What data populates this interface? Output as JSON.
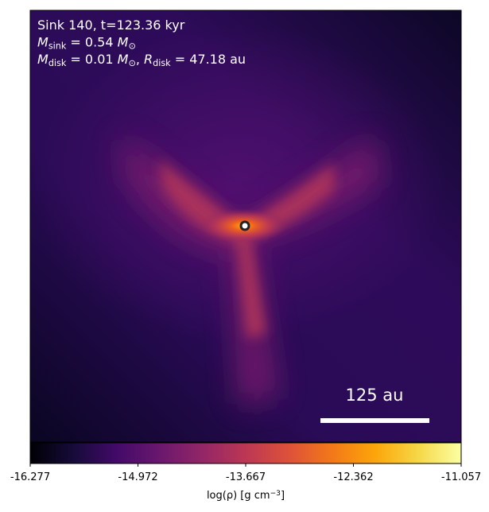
{
  "chart_data": {
    "type": "heatmap",
    "annotations": [
      [
        {
          "text": "Sink 140, t=123.36 kyr",
          "style": "normal"
        }
      ],
      [
        {
          "text": "M",
          "style": "italic"
        },
        {
          "text": "sink",
          "style": "sub"
        },
        {
          "text": " = 0.54 ",
          "style": "normal"
        },
        {
          "text": "M",
          "style": "italic"
        },
        {
          "text": "⊙",
          "style": "sub"
        }
      ],
      [
        {
          "text": "M",
          "style": "italic"
        },
        {
          "text": "disk",
          "style": "sub"
        },
        {
          "text": " = 0.01 ",
          "style": "normal"
        },
        {
          "text": "M",
          "style": "italic"
        },
        {
          "text": "⊙",
          "style": "sub"
        },
        {
          "text": ", ",
          "style": "normal"
        },
        {
          "text": "R",
          "style": "italic"
        },
        {
          "text": "disk",
          "style": "sub"
        },
        {
          "text": " = 47.18 au",
          "style": "normal"
        }
      ]
    ],
    "scale_bar_label": "125 au",
    "colorbar": {
      "colormap": "inferno",
      "clim": [
        -16.277,
        -11.057
      ],
      "ticks": [
        -16.277,
        -14.972,
        -13.667,
        -12.362,
        -11.057
      ],
      "label": [
        {
          "text": "log(ρ) [g cm",
          "style": "normal"
        },
        {
          "text": "−3",
          "style": "sup"
        },
        {
          "text": "]",
          "style": "normal"
        }
      ]
    }
  }
}
